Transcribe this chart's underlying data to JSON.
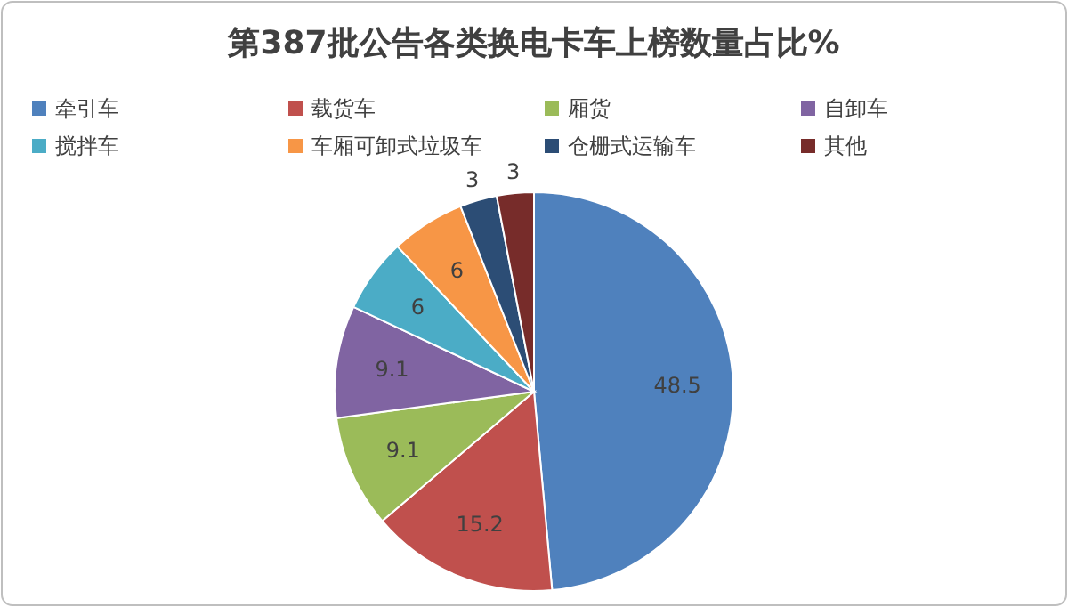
{
  "chart_data": {
    "type": "pie",
    "title": "第387批公告各类换电卡车上榜数量占比%",
    "categories": [
      "牵引车",
      "载货车",
      "厢货",
      "自卸车",
      "搅拌车",
      "车厢可卸式垃圾车",
      "仓栅式运输车",
      "其他"
    ],
    "values": [
      48.5,
      15.2,
      9.1,
      9.1,
      6,
      6,
      3,
      3
    ],
    "colors": [
      "#4f81bd",
      "#c0504d",
      "#9bbb59",
      "#8064a2",
      "#4bacc6",
      "#f79646",
      "#2c4d75",
      "#772c2a"
    ],
    "data_labels": true,
    "legend": "top"
  }
}
